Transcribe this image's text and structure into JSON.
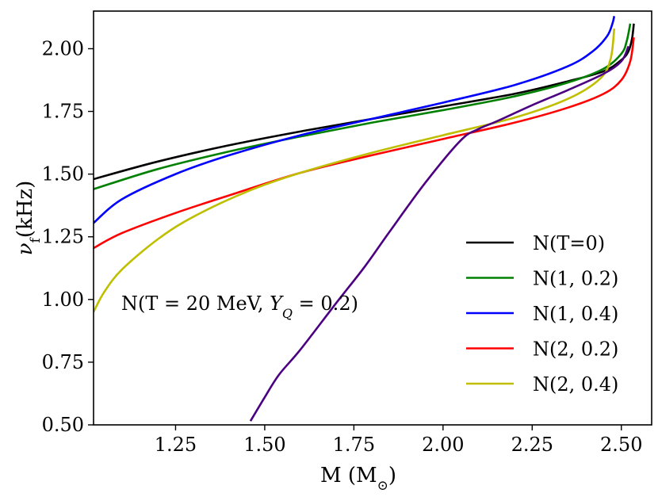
{
  "chart_data": {
    "type": "line",
    "title": "",
    "xlabel": "M (M",
    "xlabel_sub": "⊙",
    "xlabel_close": ")",
    "ylabel": "ν",
    "ylabel_sub": "f",
    "ylabel_unit": "(kHz)",
    "xlim": [
      1.02,
      2.585
    ],
    "ylim": [
      0.5,
      2.15
    ],
    "xticks": [
      1.25,
      1.5,
      1.75,
      2.0,
      2.25,
      2.5
    ],
    "xtick_labels": [
      "1.25",
      "1.50",
      "1.75",
      "2.00",
      "2.25",
      "2.50"
    ],
    "yticks": [
      0.5,
      0.75,
      1.0,
      1.25,
      1.5,
      1.75,
      2.0
    ],
    "ytick_labels": [
      "0.50",
      "0.75",
      "1.00",
      "1.25",
      "1.50",
      "1.75",
      "2.00"
    ],
    "grid": false,
    "legend_position": "bottom-right",
    "annotation": {
      "prefix": "N(T = 20 MeV, ",
      "var": "Y",
      "sub": "Q",
      "suffix": " = 0.2)",
      "color": "#4b0082"
    },
    "series": [
      {
        "name": "N(T=0)",
        "color": "#000000",
        "in_legend": true,
        "x": [
          1.02,
          1.2,
          1.4,
          1.6,
          1.8,
          2.0,
          2.2,
          2.35,
          2.45,
          2.5,
          2.52,
          2.53,
          2.535
        ],
        "y": [
          1.48,
          1.55,
          1.615,
          1.67,
          1.72,
          1.77,
          1.82,
          1.87,
          1.91,
          1.955,
          1.99,
          2.04,
          2.1
        ]
      },
      {
        "name": "N(1, 0.2)",
        "color": "#008000",
        "in_legend": true,
        "x": [
          1.02,
          1.2,
          1.4,
          1.6,
          1.8,
          2.0,
          2.2,
          2.35,
          2.45,
          2.5,
          2.515,
          2.525
        ],
        "y": [
          1.44,
          1.52,
          1.59,
          1.65,
          1.705,
          1.755,
          1.81,
          1.865,
          1.92,
          1.98,
          2.03,
          2.1
        ]
      },
      {
        "name": "N(1, 0.4)",
        "color": "#0000ff",
        "in_legend": true,
        "x": [
          1.02,
          1.1,
          1.25,
          1.4,
          1.6,
          1.8,
          2.0,
          2.2,
          2.35,
          2.42,
          2.46,
          2.475,
          2.48
        ],
        "y": [
          1.305,
          1.4,
          1.5,
          1.575,
          1.655,
          1.72,
          1.785,
          1.855,
          1.93,
          1.99,
          2.05,
          2.1,
          2.13
        ]
      },
      {
        "name": "N(2, 0.2)",
        "color": "#ff0000",
        "in_legend": true,
        "x": [
          1.02,
          1.1,
          1.25,
          1.4,
          1.6,
          1.8,
          2.0,
          2.2,
          2.35,
          2.45,
          2.5,
          2.525,
          2.535
        ],
        "y": [
          1.205,
          1.265,
          1.345,
          1.415,
          1.505,
          1.575,
          1.64,
          1.705,
          1.765,
          1.82,
          1.875,
          1.95,
          2.045
        ]
      },
      {
        "name": "N(2, 0.4)",
        "color": "#bfbf00",
        "in_legend": true,
        "x": [
          1.02,
          1.05,
          1.1,
          1.2,
          1.3,
          1.45,
          1.6,
          1.8,
          2.0,
          2.2,
          2.35,
          2.44,
          2.47,
          2.48
        ],
        "y": [
          0.95,
          1.03,
          1.12,
          1.24,
          1.33,
          1.43,
          1.505,
          1.585,
          1.655,
          1.725,
          1.8,
          1.88,
          1.96,
          2.08
        ]
      },
      {
        "name": "N(T = 20 MeV, Y_Q = 0.2)",
        "color": "#4b0082",
        "in_legend": false,
        "x": [
          1.46,
          1.5,
          1.54,
          1.6,
          1.7,
          1.78,
          1.85,
          1.95,
          2.05,
          2.1,
          2.15,
          2.25,
          2.35,
          2.45,
          2.5,
          2.52
        ],
        "y": [
          0.515,
          0.61,
          0.7,
          0.8,
          0.985,
          1.13,
          1.27,
          1.465,
          1.635,
          1.68,
          1.71,
          1.775,
          1.835,
          1.9,
          1.95,
          2.01
        ]
      }
    ]
  }
}
